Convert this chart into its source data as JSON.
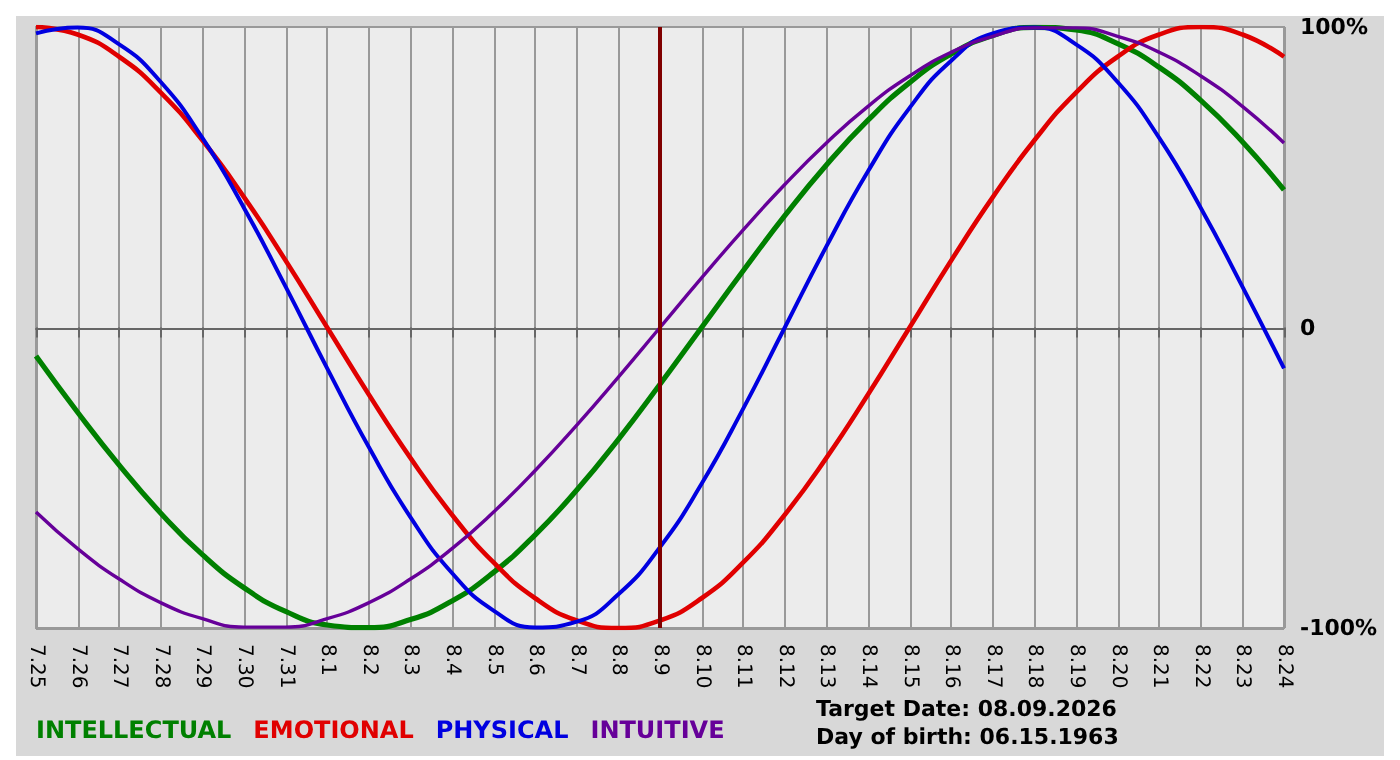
{
  "chart_data": {
    "type": "line",
    "categories": [
      "7.25",
      "7.26",
      "7.27",
      "7.28",
      "7.29",
      "7.30",
      "7.31",
      "8.1",
      "8.2",
      "8.3",
      "8.4",
      "8.5",
      "8.6",
      "8.7",
      "8.8",
      "8.9",
      "8.10",
      "8.11",
      "8.12",
      "8.13",
      "8.14",
      "8.15",
      "8.16",
      "8.17",
      "8.18",
      "8.19",
      "8.20",
      "8.21",
      "8.22",
      "8.23",
      "8.24"
    ],
    "series": [
      {
        "name": "INTELLECTUAL",
        "color": "#008000",
        "values": [
          -9.5,
          -28.2,
          -45.8,
          -61.8,
          -75.6,
          -86.6,
          -94.5,
          -99.0,
          -99.9,
          -97.2,
          -91.0,
          -81.5,
          -69.0,
          -54.1,
          -37.2,
          -18.9,
          0,
          18.9,
          37.2,
          54.1,
          69.0,
          81.5,
          91.0,
          97.2,
          99.9,
          99.0,
          94.5,
          86.6,
          75.6,
          61.8,
          45.8
        ]
      },
      {
        "name": "EMOTIONAL",
        "color": "#e00000",
        "values": [
          100,
          97.5,
          90.1,
          78.2,
          62.3,
          43.4,
          22.3,
          0,
          -22.3,
          -43.4,
          -62.3,
          -78.2,
          -90.1,
          -97.5,
          -100,
          -97.5,
          -90.1,
          -78.2,
          -62.3,
          -43.4,
          -22.3,
          0,
          22.3,
          43.4,
          62.3,
          78.2,
          90.1,
          97.5,
          100,
          97.5,
          90.1
        ]
      },
      {
        "name": "PHYSICAL",
        "color": "#0000e0",
        "values": [
          97.9,
          99.8,
          94.2,
          81.7,
          63.1,
          39.8,
          13.6,
          -13.6,
          -39.8,
          -63.1,
          -81.7,
          -94.2,
          -99.8,
          -97.9,
          -88.8,
          -73.1,
          -52.0,
          -27.0,
          0,
          27.0,
          52.0,
          73.1,
          88.8,
          97.9,
          99.8,
          94.2,
          81.7,
          63.1,
          39.8,
          13.6,
          -13.6
        ]
      },
      {
        "name": "INTUITIVE",
        "color": "#660099",
        "values": [
          -61.4,
          -73.6,
          -83.7,
          -91.6,
          -96.9,
          -99.7,
          -99.7,
          -96.9,
          -91.6,
          -83.7,
          -73.6,
          -61.4,
          -47.6,
          -32.5,
          -16.5,
          0,
          16.5,
          32.5,
          47.6,
          61.4,
          73.6,
          83.7,
          91.6,
          96.9,
          99.7,
          99.7,
          96.9,
          91.6,
          83.7,
          73.6,
          61.4
        ]
      }
    ],
    "ylim": [
      -100,
      100
    ],
    "yticks": [
      {
        "value": -100,
        "label": "-100%"
      },
      {
        "value": 0,
        "label": "0"
      },
      {
        "value": 100,
        "label": "100%"
      }
    ],
    "ref_lines": [
      {
        "axis": "x",
        "value": "8.9",
        "color": "#800000"
      }
    ],
    "annotations": [
      "Target Date: 08.09.2026",
      "Day of birth: 06.15.1963"
    ],
    "grid": true,
    "legend": "bottom left",
    "marker": "none",
    "line_style": "solid"
  }
}
